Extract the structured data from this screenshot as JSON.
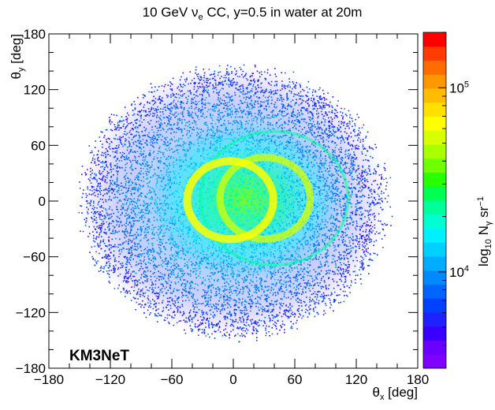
{
  "chart_data": {
    "type": "heatmap",
    "title": {
      "prefix": "10 GeV ",
      "nu": "ν",
      "nu_sub": "e",
      "suffix": " CC, y=0.5 in water at 20m"
    },
    "xlabel": {
      "main": "θ",
      "sub": "x",
      "rest": " [deg]"
    },
    "ylabel": {
      "main": "θ",
      "sub": "y",
      "rest": " [deg]"
    },
    "xlim": [
      -180,
      180
    ],
    "ylim": [
      -180,
      180
    ],
    "xticks": [
      "−180",
      "−120",
      "−60",
      "0",
      "60",
      "120",
      "180"
    ],
    "xtick_values": [
      -180,
      -120,
      -60,
      0,
      60,
      120,
      180
    ],
    "yticks": [
      "−180",
      "−120",
      "−60",
      "0",
      "60",
      "120",
      "180"
    ],
    "ytick_values": [
      -180,
      -120,
      -60,
      0,
      60,
      120,
      180
    ],
    "colorbar": {
      "scale": "log",
      "range": [
        3000,
        200000
      ],
      "label": {
        "pre": "log",
        "pre_sub": "10",
        "main": " N",
        "main_sub": "γ",
        "rest": " sr",
        "rest_sup": "−1"
      },
      "tick_labels": [
        {
          "value": 10000,
          "base": "10",
          "exp": "4"
        },
        {
          "value": 100000,
          "base": "10",
          "exp": "5"
        }
      ],
      "colors": [
        "#7f00ff",
        "#6a00ff",
        "#3a00ff",
        "#1e22ff",
        "#0040ff",
        "#0064ff",
        "#0088ff",
        "#00acff",
        "#00d0ff",
        "#00f0ff",
        "#00ffd0",
        "#00ff98",
        "#00ff50",
        "#28ff00",
        "#6eff00",
        "#a8ff00",
        "#d8ff00",
        "#ffff00",
        "#ffe000",
        "#ffbc00",
        "#ff9800",
        "#ff6c00",
        "#ff3c00",
        "#ff0000"
      ]
    },
    "features": {
      "ring_1": {
        "center_deg": [
          -3,
          1
        ],
        "radius_deg": 42
      },
      "ring_2": {
        "center_deg": [
          31,
          3
        ],
        "radius_deg": 44
      },
      "ring_3": {
        "center_deg": [
          40,
          3
        ],
        "radius_deg": 72
      },
      "disc_radius_deg": 150
    },
    "annotation": "KM3NeT"
  }
}
